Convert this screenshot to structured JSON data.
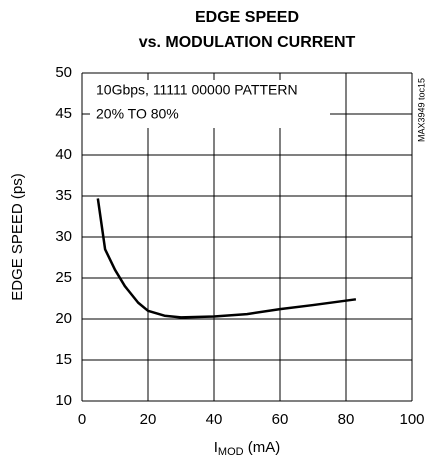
{
  "chart_data": {
    "type": "line",
    "title": [
      "EDGE SPEED",
      "vs. MODULATION  CURRENT"
    ],
    "x_label": [
      "I",
      "MOD",
      " (mA)"
    ],
    "y_label": "EDGE SPEED (ps)",
    "annotations": [
      "10Gbps, 11111 00000 PATTERN",
      "20% TO 80%",
      "MAX3949 toc15"
    ],
    "x": [
      4.8,
      7,
      10,
      13,
      17,
      20,
      25,
      30,
      40,
      50,
      60,
      70,
      83
    ],
    "series": [
      {
        "name": "EDGE SPEED",
        "color": "#000000",
        "values": [
          34.7,
          28.5,
          26,
          24,
          22,
          21,
          20.4,
          20.2,
          20.3,
          20.6,
          21.2,
          21.7,
          22.4
        ]
      }
    ],
    "xlim": [
      0,
      100
    ],
    "xticks": [
      0,
      20,
      40,
      60,
      80,
      100
    ],
    "ylim": [
      10,
      50
    ],
    "yticks": [
      10,
      15,
      20,
      25,
      30,
      35,
      40,
      45,
      50
    ],
    "grid": true
  }
}
